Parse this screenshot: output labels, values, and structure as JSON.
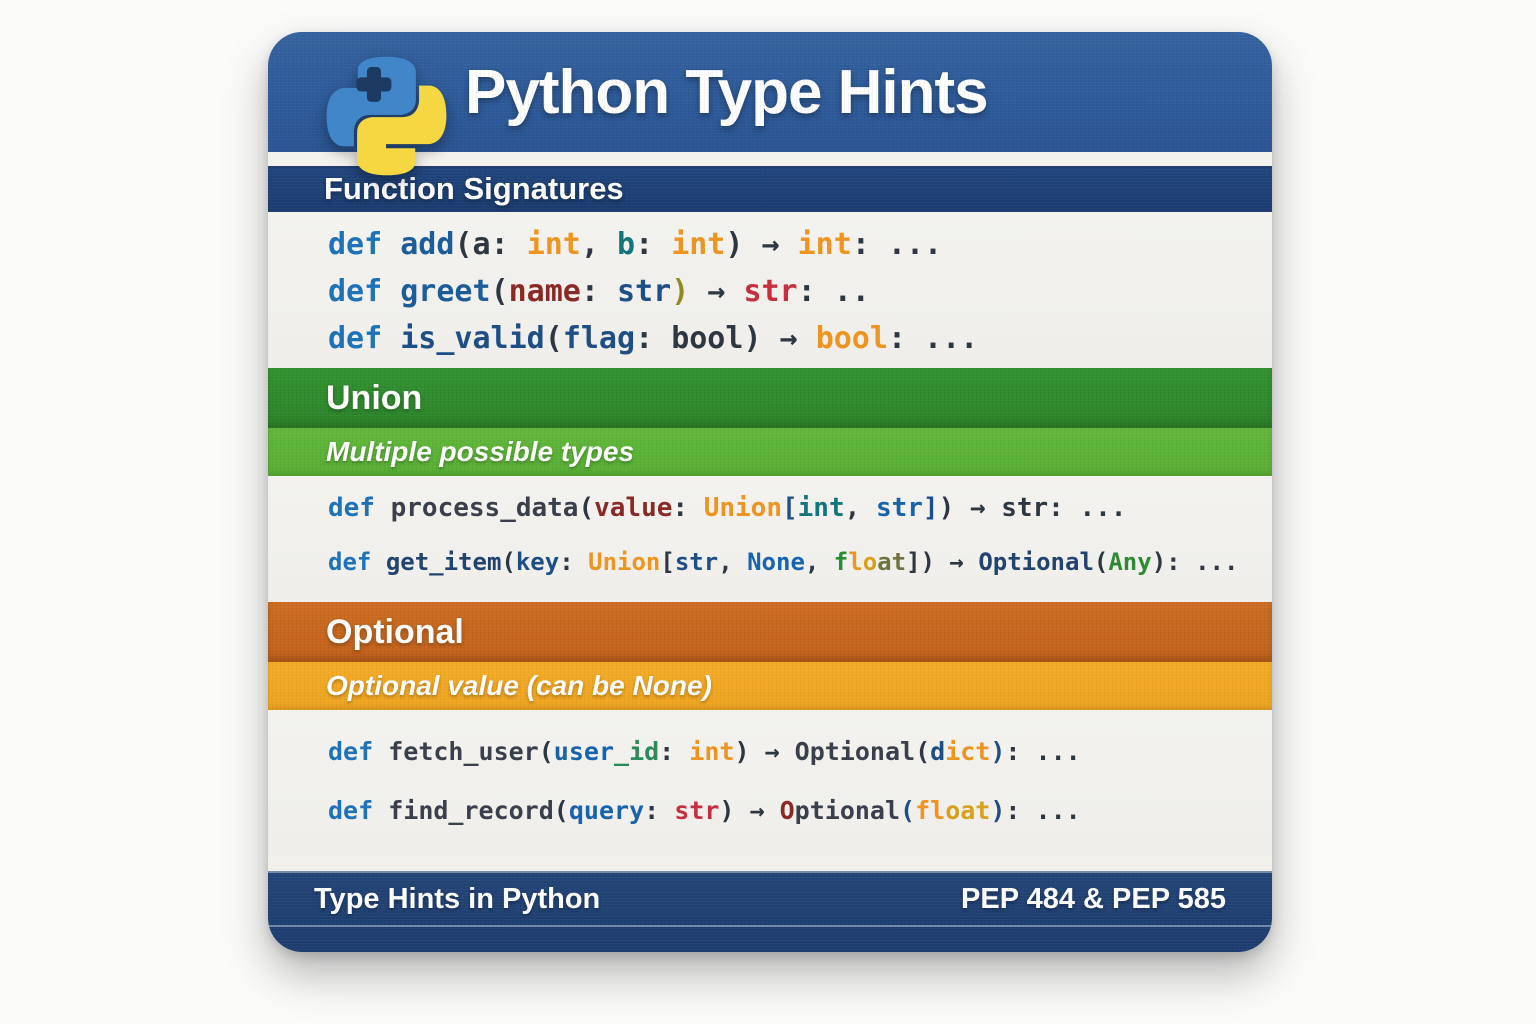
{
  "title": "Python Type Hints",
  "logo": {
    "icon": "python-logo",
    "blue": "#4086c8",
    "yellow": "#f5d742",
    "plus": "#1d3a63"
  },
  "palette": {
    "default": "#2d3742",
    "kw": "#1e72b8",
    "fnNavy": "#1c5c99",
    "fnDark": "#21436f",
    "fnSlate": "#39404b",
    "navy": "#1d4e86",
    "blue2": "#1763ae",
    "teal": "#13767c",
    "tealGreen": "#2c8a59",
    "orange": "#ee9420",
    "gold": "#d7a11c",
    "olive": "#6e7340",
    "oliveGold": "#8f8b1f",
    "red": "#c72f3e",
    "maroon": "#8a2a26",
    "green": "#2e8b33"
  },
  "band_colors": {
    "header_blue": "#2d5b9b",
    "function_bar_navy": "#1c3e74",
    "union_dark_green": "#2f8d2b",
    "union_light_green": "#5cb437",
    "optional_dark_orange": "#c8681d",
    "optional_amber": "#f3a823",
    "footer_navy": "#1f3f74"
  },
  "sections": [
    {
      "header": "Function Signatures",
      "lines": [
        [
          [
            "def",
            "kw"
          ],
          [
            " "
          ],
          [
            "add",
            "fnNavy"
          ],
          [
            "("
          ],
          [
            "a"
          ],
          [
            ": "
          ],
          [
            "int",
            "orange"
          ],
          [
            ", "
          ],
          [
            "b",
            "teal"
          ],
          [
            ": "
          ],
          [
            "int",
            "orange"
          ],
          [
            ") "
          ],
          [
            "→"
          ],
          [
            " "
          ],
          [
            "int",
            "orange"
          ],
          [
            ": ..."
          ]
        ],
        [
          [
            "def",
            "kw"
          ],
          [
            " "
          ],
          [
            "greet",
            "fnNavy"
          ],
          [
            "("
          ],
          [
            "name",
            "maroon"
          ],
          [
            ": "
          ],
          [
            "str",
            "navy"
          ],
          [
            ")",
            "oliveGold"
          ],
          [
            " → "
          ],
          [
            "str",
            "red"
          ],
          [
            ": .."
          ]
        ],
        [
          [
            "def",
            "kw"
          ],
          [
            " "
          ],
          [
            "is_valid",
            "navy"
          ],
          [
            "("
          ],
          [
            "flag",
            "navy"
          ],
          [
            ": "
          ],
          [
            "bool"
          ],
          [
            ") → "
          ],
          [
            "bool",
            "orange"
          ],
          [
            ": ..."
          ]
        ]
      ]
    },
    {
      "header": "Union",
      "subheader": "Multiple possible types",
      "lines": [
        [
          [
            "def",
            "kw"
          ],
          [
            " "
          ],
          [
            "process_data",
            "fnSlate"
          ],
          [
            "("
          ],
          [
            "value",
            "maroon"
          ],
          [
            ": "
          ],
          [
            "Union",
            "orange"
          ],
          [
            "[",
            "navy"
          ],
          [
            "int",
            "teal"
          ],
          [
            ", "
          ],
          [
            "str",
            "blue2"
          ],
          [
            "]",
            "navy"
          ],
          [
            ") → "
          ],
          [
            "str"
          ],
          [
            ": ..."
          ]
        ],
        [
          [
            "def",
            "kw"
          ],
          [
            " "
          ],
          [
            "get_item",
            "fnDark"
          ],
          [
            "("
          ],
          [
            "key",
            "navy"
          ],
          [
            ": "
          ],
          [
            "Union",
            "orange"
          ],
          [
            "["
          ],
          [
            "str",
            "navy"
          ],
          [
            ", "
          ],
          [
            "None",
            "blue2"
          ],
          [
            ", "
          ],
          [
            "f",
            "green"
          ],
          [
            "l",
            "orange"
          ],
          [
            "o",
            "gold"
          ],
          [
            "at",
            "olive"
          ],
          [
            "]) → "
          ],
          [
            "Optional",
            "fnDark"
          ],
          [
            "("
          ],
          [
            "Any",
            "green"
          ],
          [
            "): ..."
          ]
        ]
      ]
    },
    {
      "header": "Optional",
      "subheader": "Optional value (can be None)",
      "lines": [
        [
          [
            "def",
            "kw"
          ],
          [
            " "
          ],
          [
            "fetch_user",
            "fnSlate"
          ],
          [
            "("
          ],
          [
            "user",
            "blue2"
          ],
          [
            "_id",
            "tealGreen"
          ],
          [
            ": "
          ],
          [
            "int",
            "orange"
          ],
          [
            ") → "
          ],
          [
            "Optional",
            "fnSlate"
          ],
          [
            "("
          ],
          [
            "d",
            "navy"
          ],
          [
            "ict",
            "orange"
          ],
          [
            ")",
            "navy"
          ],
          [
            ": ..."
          ]
        ],
        [
          [
            "def",
            "kw"
          ],
          [
            " "
          ],
          [
            "find_record",
            "fnSlate"
          ],
          [
            "("
          ],
          [
            "query",
            "blue2"
          ],
          [
            ": "
          ],
          [
            "str",
            "red"
          ],
          [
            ") → "
          ],
          [
            "O",
            "maroon"
          ],
          [
            "ptional",
            "fnSlate"
          ],
          [
            "(",
            "navy"
          ],
          [
            "fl",
            "orange"
          ],
          [
            "oat",
            "gold"
          ],
          [
            ")",
            "navy"
          ],
          [
            ": ..."
          ]
        ]
      ]
    }
  ],
  "footer": {
    "left": "Type Hints in Python",
    "right": "PEP 484 & PEP 585"
  }
}
